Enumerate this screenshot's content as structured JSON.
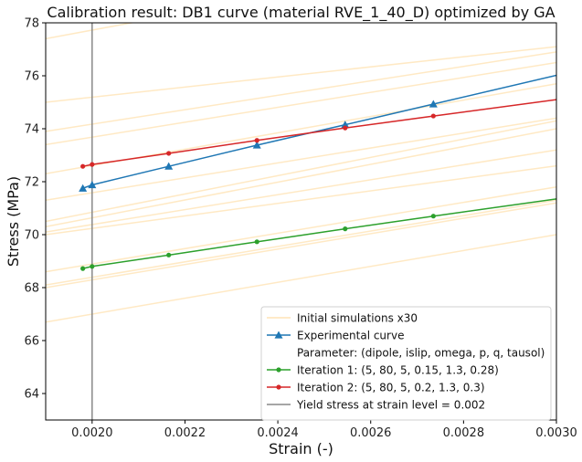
{
  "chart_data": {
    "type": "line",
    "title": "Calibration result: DB1 curve (material RVE_1_40_D) optimized by GA",
    "xlabel": "Strain (-)",
    "ylabel": "Stress (MPa)",
    "xlim": [
      0.0019,
      0.003
    ],
    "ylim": [
      63,
      78
    ],
    "x_ticks": [
      0.002,
      0.0022,
      0.0024,
      0.0026,
      0.0028,
      0.003
    ],
    "x_tick_labels": [
      "0.0020",
      "0.0022",
      "0.0024",
      "0.0026",
      "0.0028",
      "0.0030"
    ],
    "y_ticks": [
      64,
      66,
      68,
      70,
      72,
      74,
      76,
      78
    ],
    "y_tick_labels": [
      "64",
      "66",
      "68",
      "70",
      "72",
      "74",
      "76",
      "78"
    ],
    "grid": false,
    "legend_position": "bottom-right",
    "legend": [
      {
        "label": "Initial simulations x30",
        "series": "initial"
      },
      {
        "label": "Experimental curve",
        "series": "experimental"
      },
      {
        "label": "Parameter: (dipole, islip, omega, p, q, tausol)",
        "series": null
      },
      {
        "label": "Iteration 1: (5, 80, 5, 0.15, 1.3, 0.28)",
        "series": "iteration1"
      },
      {
        "label": "Iteration 2: (5, 80, 5, 0.2, 1.3, 0.3)",
        "series": "iteration2"
      },
      {
        "label": "Yield stress at strain level = 0.002",
        "series": "yield"
      }
    ],
    "series": [
      {
        "id": "initial",
        "color": "#ffe4b5",
        "marker": "none",
        "lines": [
          [
            [
              0.0019,
              77.4
            ],
            [
              0.0023,
              78.7
            ]
          ],
          [
            [
              0.0019,
              75.0
            ],
            [
              0.003,
              77.1
            ]
          ],
          [
            [
              0.0019,
              73.9
            ],
            [
              0.003,
              76.9
            ]
          ],
          [
            [
              0.0019,
              73.4
            ],
            [
              0.003,
              76.5
            ]
          ],
          [
            [
              0.0019,
              72.3
            ],
            [
              0.003,
              75.7
            ]
          ],
          [
            [
              0.0019,
              71.3
            ],
            [
              0.003,
              74.4
            ]
          ],
          [
            [
              0.0019,
              70.5
            ],
            [
              0.003,
              74.3
            ]
          ],
          [
            [
              0.0019,
              70.3
            ],
            [
              0.003,
              74.0
            ]
          ],
          [
            [
              0.0019,
              70.1
            ],
            [
              0.003,
              73.2
            ]
          ],
          [
            [
              0.0019,
              70.0
            ],
            [
              0.003,
              72.6
            ]
          ],
          [
            [
              0.0019,
              68.6
            ],
            [
              0.003,
              71.8
            ]
          ],
          [
            [
              0.0019,
              68.1
            ],
            [
              0.003,
              71.3
            ]
          ],
          [
            [
              0.0019,
              68.0
            ],
            [
              0.003,
              71.2
            ]
          ],
          [
            [
              0.0019,
              66.7
            ],
            [
              0.003,
              70.0
            ]
          ]
        ]
      },
      {
        "id": "experimental",
        "color": "#1f77b4",
        "marker": "triangle",
        "x": [
          0.00198,
          0.002,
          0.002165,
          0.002355,
          0.002545,
          0.002735
        ],
        "y": [
          71.75,
          71.88,
          72.58,
          73.38,
          74.15,
          74.93
        ],
        "extend_to": [
          0.003,
          76.02
        ]
      },
      {
        "id": "iteration1",
        "color": "#2ca02c",
        "marker": "circle",
        "x": [
          0.00198,
          0.002,
          0.002165,
          0.002355,
          0.002545,
          0.002735
        ],
        "y": [
          68.72,
          68.8,
          69.23,
          69.73,
          70.22,
          70.7
        ],
        "extend_to": [
          0.003,
          71.35
        ]
      },
      {
        "id": "iteration2",
        "color": "#d62728",
        "marker": "circle",
        "x": [
          0.00198,
          0.002,
          0.002165,
          0.002355,
          0.002545,
          0.002735
        ],
        "y": [
          72.58,
          72.65,
          73.07,
          73.56,
          74.03,
          74.48
        ],
        "extend_to": [
          0.003,
          75.1
        ]
      },
      {
        "id": "yield",
        "color": "#888888",
        "marker": "none",
        "vertical_x": 0.002
      }
    ]
  }
}
